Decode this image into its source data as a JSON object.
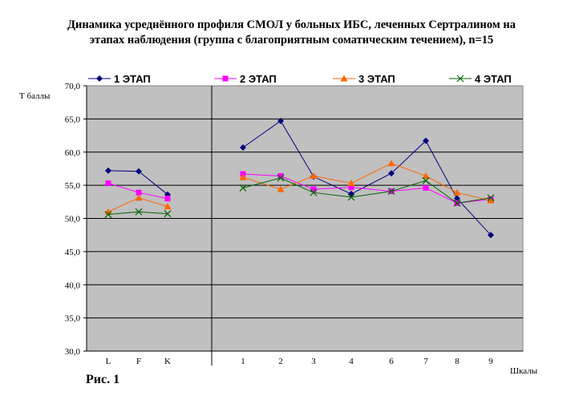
{
  "title_line1": "Динамика усреднённого профиля СМОЛ у больных ИБС, леченных Сертралином на",
  "title_line2": "этапах наблюдения (группа с благоприятным соматическим течением), n=15",
  "caption": "Рис. 1",
  "chart_data": {
    "type": "line",
    "title": "Динамика усреднённого профиля СМОЛ у больных ИБС, леченных Сертралином на этапах наблюдения (группа с благоприятным соматическим течением), n=15",
    "ylabel": "Т баллы",
    "xlabel": "Шкалы",
    "categories": [
      "L",
      "F",
      "K",
      "1",
      "2",
      "3",
      "4",
      "6",
      "7",
      "8",
      "9"
    ],
    "category_groups": [
      [
        "L",
        "F",
        "K"
      ],
      [
        "1",
        "2",
        "3",
        "4",
        "6",
        "7",
        "8",
        "9"
      ]
    ],
    "ylim": [
      30.0,
      70.0
    ],
    "yticks": [
      "70,0",
      "65,0",
      "60,0",
      "55,0",
      "50,0",
      "45,0",
      "40,0",
      "35,0",
      "30,0"
    ],
    "grid": true,
    "legend_position": "top",
    "background": "#c0c0c0",
    "series": [
      {
        "name": "1 ЭТАП",
        "color": "#000080",
        "marker": "diamond",
        "values": [
          57.2,
          57.1,
          53.6,
          60.7,
          64.7,
          56.3,
          53.7,
          56.8,
          61.7,
          53.0,
          47.5
        ]
      },
      {
        "name": "2 ЭТАП",
        "color": "#ff00ff",
        "marker": "square",
        "values": [
          55.3,
          53.9,
          53.0,
          56.7,
          56.4,
          54.4,
          54.7,
          54.1,
          54.6,
          52.3,
          52.9
        ]
      },
      {
        "name": "3 ЭТАП",
        "color": "#ff6600",
        "marker": "triangle",
        "values": [
          51.0,
          53.1,
          51.8,
          56.2,
          54.4,
          56.4,
          55.3,
          58.3,
          56.4,
          53.9,
          52.7
        ]
      },
      {
        "name": "4 ЭТАП",
        "color": "#006400",
        "marker": "x",
        "values": [
          50.6,
          51.0,
          50.7,
          54.6,
          56.1,
          53.9,
          53.2,
          54.1,
          55.7,
          52.3,
          53.1
        ]
      }
    ]
  }
}
